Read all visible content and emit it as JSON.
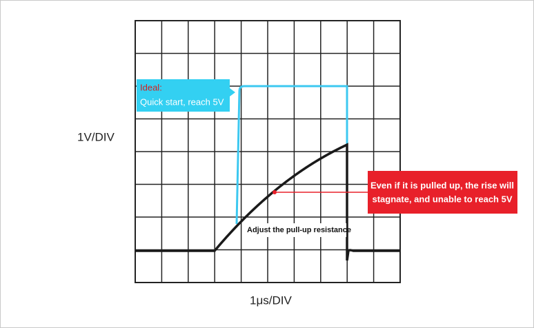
{
  "axes": {
    "y_label": "1V/DIV",
    "x_label": "1μs/DIV"
  },
  "ideal_callout": {
    "title": "Ideal:",
    "text": "Quick start, reach 5V"
  },
  "stagnate_callout": {
    "lines": [
      "Even if it is pulled up, the rise will",
      "stagnate, and unable to reach 5V"
    ]
  },
  "adjust_note": "Adjust the pull-up resistance"
}
